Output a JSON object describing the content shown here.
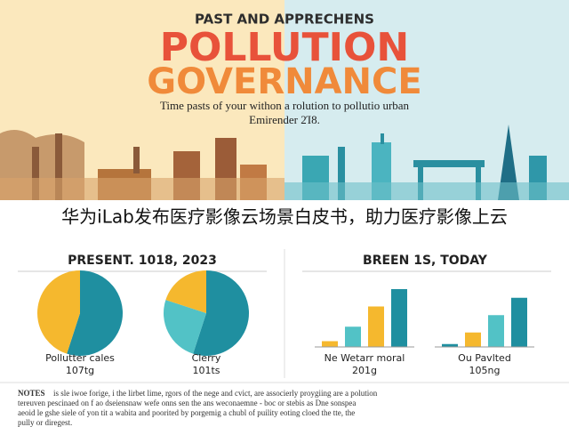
{
  "header": {
    "kicker": "PAST AND APPRECHENS",
    "title_line1": "POLLUTION",
    "title_line2": "GOVERNANCE",
    "subtitle_line1": "Time pasts of your withon a rolution to pollutio urban",
    "subtitle_line2": "Emirender 2Ί8."
  },
  "banner": "华为iLab发布医疗影像云场景白皮书，助力医疗影像上云",
  "sections": [
    {
      "heading": "PRESENT. 1018, 2023"
    },
    {
      "heading": "BREEN 1S, TODAY"
    }
  ],
  "charts": [
    {
      "type": "pie",
      "values": [
        55,
        45
      ],
      "colors": [
        "#1f8fa0",
        "#f5b82e"
      ],
      "label": "Pollutter cales",
      "sublabel": "107tg"
    },
    {
      "type": "pie",
      "values": [
        55,
        25,
        20
      ],
      "colors": [
        "#1f8fa0",
        "#52c2c6",
        "#f5b82e"
      ],
      "label": "Clerry",
      "sublabel": "101ts"
    },
    {
      "type": "bar",
      "values": [
        10,
        35,
        70,
        100
      ],
      "colors": [
        "#f5b82e",
        "#52c2c6",
        "#f5b82e",
        "#1f8fa0"
      ],
      "ylim": [
        0,
        100
      ],
      "label": "Ne Wetarr moral",
      "sublabel": "201g"
    },
    {
      "type": "bar",
      "values": [
        5,
        25,
        55,
        85
      ],
      "colors": [
        "#1f8fa0",
        "#f5b82e",
        "#52c2c6",
        "#1f8fa0"
      ],
      "ylim": [
        0,
        100
      ],
      "label": "Ou Pavlted",
      "sublabel": "105ng"
    }
  ],
  "notes": {
    "label": "NOTES",
    "line1": "is sle iwoe forige, i the lirbet lime, rgors of the nege and cvict, are associerly proygiing are a polution",
    "line2": "tereuven pescinaed on f ao dseiensnaw wefe onns sen the ans weconaemne - boc or stebis as Dne sonspea",
    "line3": "aeoid le gshe siele of yon tit a wabita and poorited by porgemig a chubl of puility eoting cloed the tte, the",
    "line4": "pully or diregest."
  }
}
